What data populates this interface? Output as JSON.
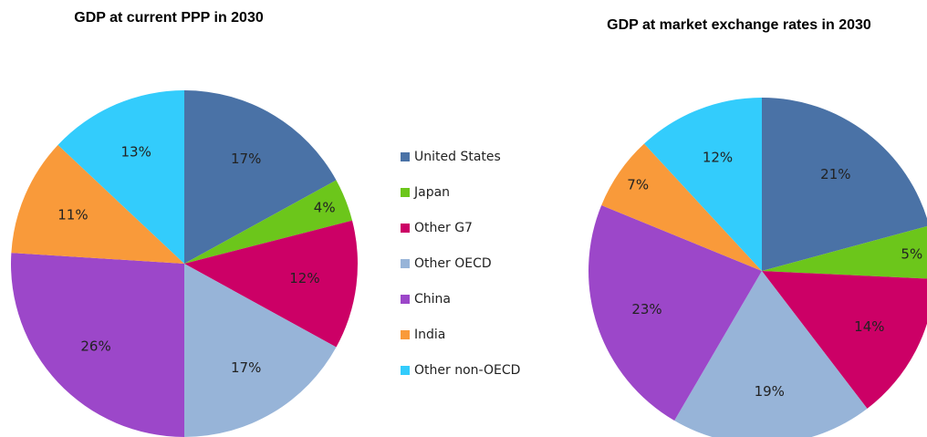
{
  "chart_data": [
    {
      "type": "pie",
      "title": "GDP at current PPP in 2030",
      "categories": [
        "United States",
        "Japan",
        "Other G7",
        "Other OECD",
        "China",
        "India",
        "Other non-OECD"
      ],
      "values": [
        17,
        4,
        12,
        17,
        26,
        11,
        13
      ],
      "value_labels": [
        "17%",
        "4%",
        "12%",
        "17%",
        "26%",
        "11%",
        "13%"
      ],
      "colors": [
        "#4a72a6",
        "#6cc61b",
        "#cc0066",
        "#97b4d8",
        "#9c47c9",
        "#f99a3a",
        "#33ccfc"
      ],
      "legend": "right"
    },
    {
      "type": "pie",
      "title": "GDP at market exchange rates in 2030",
      "categories": [
        "United States",
        "Japan",
        "Other G7",
        "Other OECD",
        "China",
        "India",
        "Other non-OECD"
      ],
      "values": [
        21,
        5,
        14,
        19,
        23,
        7,
        12
      ],
      "value_labels": [
        "21%",
        "5%",
        "14%",
        "19%",
        "23%",
        "7%",
        "12%"
      ],
      "colors": [
        "#4a72a6",
        "#6cc61b",
        "#cc0066",
        "#97b4d8",
        "#9c47c9",
        "#f99a3a",
        "#33ccfc"
      ]
    }
  ]
}
